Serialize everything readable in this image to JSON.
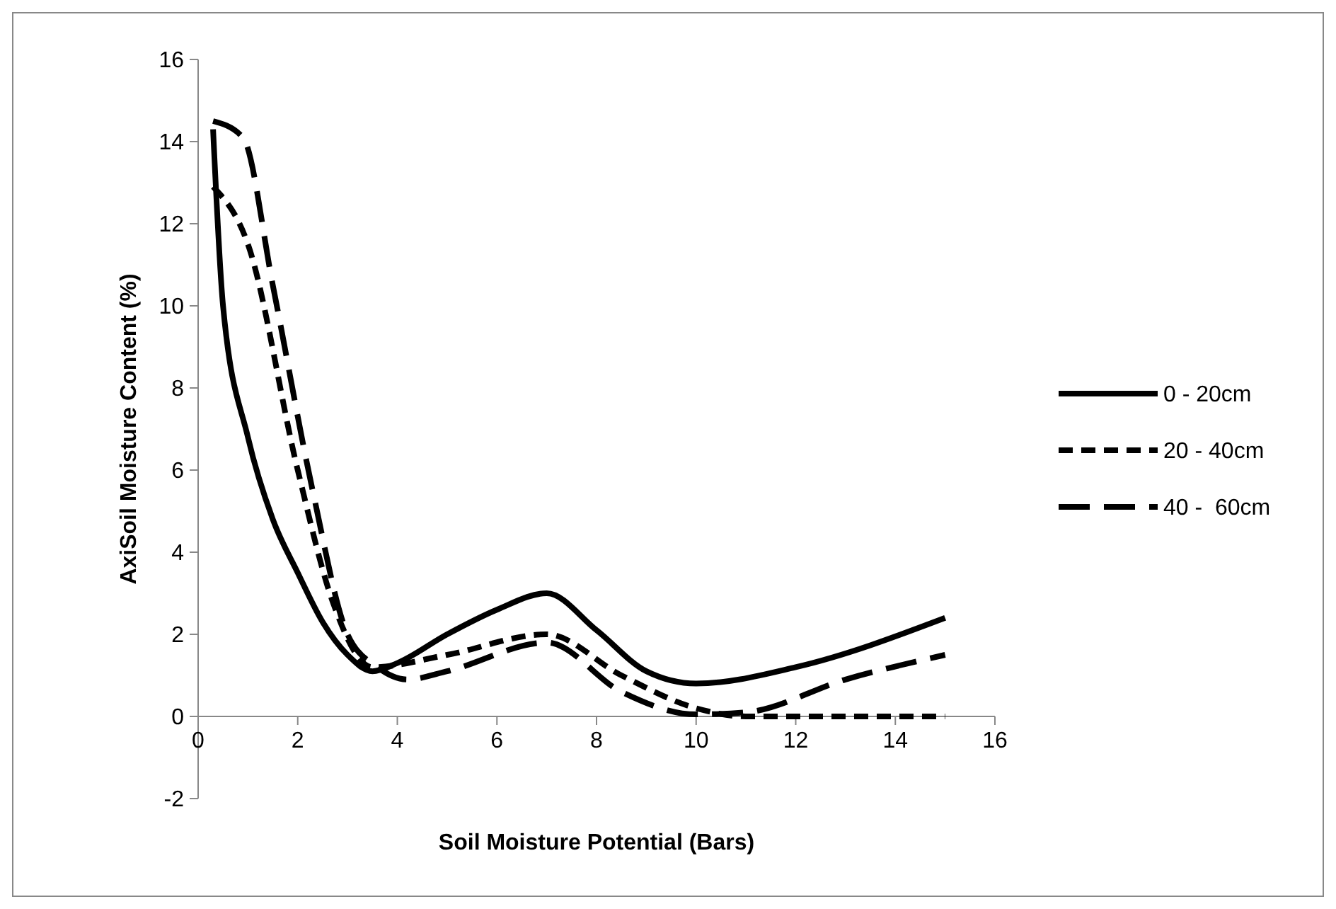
{
  "chart_data": {
    "type": "line",
    "xlabel": "Soil Moisture Potential (Bars)",
    "ylabel": "AxiSoil Moisture Content (%)",
    "xlim": [
      0,
      16
    ],
    "xticks": [
      0,
      2,
      4,
      6,
      8,
      10,
      12,
      14,
      16
    ],
    "ylim": [
      -2,
      16
    ],
    "yticks": [
      -2,
      0,
      2,
      4,
      6,
      8,
      10,
      12,
      14,
      16
    ],
    "grid": false,
    "legend": "right",
    "series": [
      {
        "name": "0 - 20cm",
        "color": "#000000",
        "line_style": "solid",
        "x": [
          0.3,
          0.5,
          1,
          1.5,
          2,
          2.5,
          3,
          3.5,
          4,
          5,
          6,
          7,
          8,
          9,
          10,
          12,
          15
        ],
        "values": [
          14.3,
          10,
          6.8,
          4.8,
          3.5,
          2.3,
          1.5,
          1.1,
          1.3,
          2,
          2.6,
          3,
          2.1,
          1.1,
          0.8,
          1.2,
          2.4
        ]
      },
      {
        "name": "20 - 40cm",
        "color": "#000000",
        "line_style": "dashed",
        "x": [
          0.3,
          1,
          2,
          2.7,
          3.5,
          5,
          7,
          8.5,
          10,
          11,
          15
        ],
        "values": [
          12.9,
          11.5,
          6,
          2.8,
          1.2,
          1.5,
          2,
          1,
          0.2,
          0,
          0
        ]
      },
      {
        "name": "40 -  60cm",
        "color": "#000000",
        "line_style": "longdash",
        "x": [
          0.3,
          0.9,
          1.5,
          2.3,
          3,
          3.6,
          4.2,
          5,
          7,
          8.5,
          10,
          11,
          13,
          15
        ],
        "values": [
          14.5,
          14.1,
          10.5,
          5.5,
          2,
          1.2,
          0.9,
          1.1,
          1.8,
          0.6,
          0.05,
          0.1,
          0.9,
          1.5
        ]
      }
    ]
  }
}
